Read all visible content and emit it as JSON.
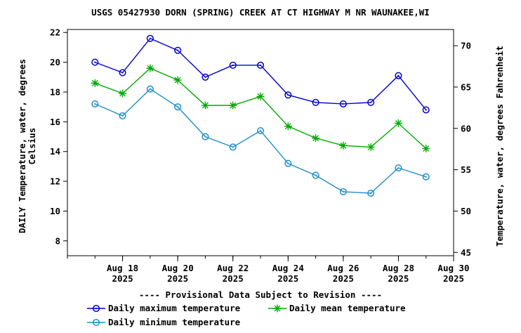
{
  "chart_data": {
    "type": "line",
    "title": "USGS 05427930 DORN (SPRING) CREEK AT CT HIGHWAY M NR WAUNAKEE,WI",
    "ylabel_left_line1": "DAILY Temperature, water, degrees",
    "ylabel_left_line2": "Celsius",
    "ylabel_right": "Temperature, water, degrees Fahrenheit",
    "x_start_date": "2025-08-16",
    "x": [
      "2025-08-17",
      "2025-08-18",
      "2025-08-19",
      "2025-08-20",
      "2025-08-21",
      "2025-08-22",
      "2025-08-23",
      "2025-08-24",
      "2025-08-25",
      "2025-08-26",
      "2025-08-27",
      "2025-08-28",
      "2025-08-29"
    ],
    "xlim": [
      "2025-08-16",
      "2025-08-30"
    ],
    "x_ticks": [
      {
        "date": "2025-08-18",
        "line1": "Aug 18",
        "line2": "2025"
      },
      {
        "date": "2025-08-20",
        "line1": "Aug 20",
        "line2": "2025"
      },
      {
        "date": "2025-08-22",
        "line1": "Aug 22",
        "line2": "2025"
      },
      {
        "date": "2025-08-24",
        "line1": "Aug 24",
        "line2": "2025"
      },
      {
        "date": "2025-08-26",
        "line1": "Aug 26",
        "line2": "2025"
      },
      {
        "date": "2025-08-28",
        "line1": "Aug 28",
        "line2": "2025"
      },
      {
        "date": "2025-08-30",
        "line1": "Aug 30",
        "line2": "2025"
      }
    ],
    "ylim": [
      7,
      22.2
    ],
    "y_ticks": [
      8,
      10,
      12,
      14,
      16,
      18,
      20,
      22
    ],
    "y2_ticks": [
      45,
      50,
      55,
      60,
      65,
      70
    ],
    "series": [
      {
        "name": "Daily maximum temperature",
        "color": "#0000cc",
        "marker": "circle",
        "values": [
          20.0,
          19.3,
          21.6,
          20.8,
          19.0,
          19.8,
          19.8,
          17.8,
          17.3,
          17.2,
          17.3,
          19.1,
          16.8
        ]
      },
      {
        "name": "Daily mean temperature",
        "color": "#00aa00",
        "marker": "asterisk",
        "values": [
          18.6,
          17.9,
          19.6,
          18.8,
          17.1,
          17.1,
          17.7,
          15.7,
          14.9,
          14.4,
          14.3,
          15.9,
          14.2
        ]
      },
      {
        "name": "Daily minimum temperature",
        "color": "#1e8fc8",
        "marker": "circle",
        "values": [
          17.2,
          16.4,
          18.2,
          17.0,
          15.0,
          14.3,
          15.4,
          13.2,
          12.4,
          11.3,
          11.2,
          12.9,
          12.3
        ]
      }
    ],
    "provisional_note": "---- Provisional Data Subject to Revision ----",
    "provisional_color": "#ff0000",
    "legend_placement": "bottom",
    "grid": false
  }
}
